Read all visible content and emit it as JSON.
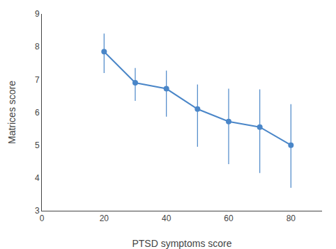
{
  "chart_data": {
    "type": "line",
    "x": [
      20,
      30,
      40,
      50,
      60,
      70,
      80
    ],
    "values": [
      7.85,
      6.9,
      6.72,
      6.1,
      5.72,
      5.55,
      5.0
    ],
    "error_upper": [
      0.55,
      0.45,
      0.55,
      0.75,
      1.0,
      1.15,
      1.25
    ],
    "error_lower": [
      0.65,
      0.55,
      0.85,
      1.15,
      1.3,
      1.4,
      1.3
    ],
    "color": "#4a86c8",
    "marker": "circle",
    "xlabel": "PTSD symptoms score",
    "ylabel": "Matrices score",
    "xlim": [
      0,
      90
    ],
    "ylim": [
      3,
      9
    ],
    "xticks": [
      0,
      20,
      40,
      60,
      80
    ],
    "yticks": [
      3,
      4,
      5,
      6,
      7,
      8,
      9
    ],
    "grid": false
  }
}
